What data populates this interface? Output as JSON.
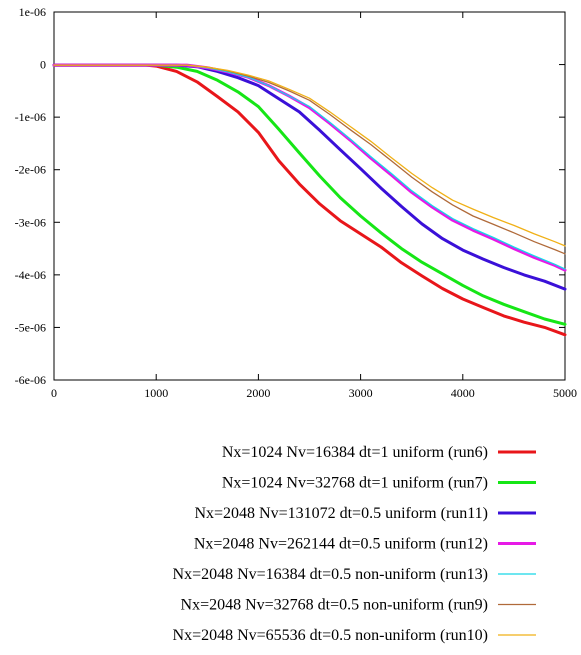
{
  "chart_data": {
    "type": "line",
    "title": "",
    "xlabel": "",
    "ylabel": "",
    "xlim": [
      0,
      5000
    ],
    "ylim": [
      -6e-06,
      1e-06
    ],
    "x_ticks": [
      0,
      1000,
      2000,
      3000,
      4000,
      5000
    ],
    "x_tick_labels": [
      "0",
      "1000",
      "2000",
      "3000",
      "4000",
      "5000"
    ],
    "y_ticks": [
      1e-06,
      0,
      -1e-06,
      -2e-06,
      -3e-06,
      -4e-06,
      -5e-06,
      -6e-06
    ],
    "y_tick_labels": [
      "1e-06",
      "0",
      "-1e-06",
      "-2e-06",
      "-3e-06",
      "-4e-06",
      "-5e-06",
      "-6e-06"
    ],
    "grid": false,
    "legend_position": "below",
    "series": [
      {
        "name": "Nx=1024 Nv=16384 dt=1 uniform (run6)",
        "color": "#e8161a",
        "width": 3,
        "x": [
          0,
          900,
          1000,
          1200,
          1400,
          1600,
          1800,
          2000,
          2200,
          2400,
          2600,
          2800,
          3000,
          3200,
          3400,
          3600,
          3800,
          4000,
          4200,
          4400,
          4600,
          4800,
          5000
        ],
        "y": [
          -1e-08,
          -1e-08,
          -3e-08,
          -1.3e-07,
          -3.3e-07,
          -6.1e-07,
          -9e-07,
          -1.29e-06,
          -1.83e-06,
          -2.27e-06,
          -2.65e-06,
          -2.97e-06,
          -3.22e-06,
          -3.47e-06,
          -3.77e-06,
          -4.02e-06,
          -4.26e-06,
          -4.46e-06,
          -4.62e-06,
          -4.78e-06,
          -4.9e-06,
          -5e-06,
          -5.14e-06
        ]
      },
      {
        "name": "Nx=1024 Nv=32768 dt=1 uniform (run7)",
        "color": "#16e616",
        "width": 3,
        "x": [
          0,
          1000,
          1200,
          1400,
          1600,
          1800,
          2000,
          2200,
          2400,
          2600,
          2800,
          3000,
          3200,
          3400,
          3600,
          3800,
          4000,
          4200,
          4400,
          4600,
          4800,
          5000
        ],
        "y": [
          -1e-08,
          -1e-08,
          -5e-08,
          -1.3e-07,
          -3e-07,
          -5.2e-07,
          -8e-07,
          -1.23e-06,
          -1.68e-06,
          -2.12e-06,
          -2.53e-06,
          -2.88e-06,
          -3.2e-06,
          -3.5e-06,
          -3.76e-06,
          -3.98e-06,
          -4.2e-06,
          -4.4e-06,
          -4.56e-06,
          -4.7e-06,
          -4.84e-06,
          -4.94e-06
        ]
      },
      {
        "name": "Nx=2048 Nv=131072 dt=0.5 uniform (run11)",
        "color": "#3a10d8",
        "width": 3,
        "x": [
          0,
          1200,
          1400,
          1600,
          1800,
          2000,
          2200,
          2400,
          2600,
          2800,
          3000,
          3200,
          3400,
          3600,
          3800,
          4000,
          4200,
          4400,
          4600,
          4800,
          5000
        ],
        "y": [
          -1e-08,
          -1e-08,
          -4e-08,
          -1.3e-07,
          -2.5e-07,
          -4e-07,
          -6.5e-07,
          -9e-07,
          -1.25e-06,
          -1.62e-06,
          -1.98e-06,
          -2.35e-06,
          -2.7e-06,
          -3.03e-06,
          -3.31e-06,
          -3.53e-06,
          -3.7e-06,
          -3.86e-06,
          -4e-06,
          -4.12e-06,
          -4.27e-06
        ]
      },
      {
        "name": "Nx=2048 Nv=262144 dt=0.5 uniform (run12)",
        "color": "#e61ae6",
        "width": 3,
        "x": [
          0,
          1300,
          1500,
          1700,
          1900,
          2100,
          2300,
          2500,
          2700,
          2900,
          3100,
          3300,
          3500,
          3700,
          3900,
          4100,
          4300,
          4500,
          4700,
          4900,
          5000
        ],
        "y": [
          -1e-08,
          -1e-08,
          -6e-08,
          -1.4e-07,
          -2.4e-07,
          -4e-07,
          -6e-07,
          -8.2e-07,
          -1.12e-06,
          -1.44e-06,
          -1.78e-06,
          -2.1e-06,
          -2.43e-06,
          -2.71e-06,
          -2.96e-06,
          -3.15e-06,
          -3.32e-06,
          -3.5e-06,
          -3.67e-06,
          -3.82e-06,
          -3.91e-06
        ]
      },
      {
        "name": "Nx=2048 Nv=16384 dt=0.5 non-uniform (run13)",
        "color": "#16d8e8",
        "width": 1.3,
        "x": [
          0,
          1300,
          1500,
          1700,
          1900,
          2100,
          2300,
          2500,
          2700,
          2900,
          3100,
          3300,
          3500,
          3700,
          3900,
          4100,
          4300,
          4500,
          4700,
          4900,
          5000
        ],
        "y": [
          -1e-08,
          -1e-08,
          -6e-08,
          -1.4e-07,
          -2.4e-07,
          -4e-07,
          -6e-07,
          -8e-07,
          -1.1e-06,
          -1.42e-06,
          -1.75e-06,
          -2.07e-06,
          -2.4e-06,
          -2.68e-06,
          -2.93e-06,
          -3.12e-06,
          -3.29e-06,
          -3.47e-06,
          -3.64e-06,
          -3.8e-06,
          -3.89e-06
        ]
      },
      {
        "name": "Nx=2048 Nv=32768 dt=0.5 non-uniform (run9)",
        "color": "#b06a3a",
        "width": 1.3,
        "x": [
          0,
          1300,
          1500,
          1700,
          1900,
          2100,
          2300,
          2500,
          2700,
          2900,
          3100,
          3300,
          3500,
          3700,
          3900,
          4100,
          4300,
          4500,
          4700,
          4900,
          5000
        ],
        "y": [
          -1e-08,
          -1e-08,
          -5e-08,
          -1.2e-07,
          -2.2e-07,
          -3.4e-07,
          -5e-07,
          -6.8e-07,
          -9.5e-07,
          -1.24e-06,
          -1.52e-06,
          -1.83e-06,
          -2.14e-06,
          -2.42e-06,
          -2.67e-06,
          -2.88e-06,
          -3.04e-06,
          -3.2e-06,
          -3.37e-06,
          -3.52e-06,
          -3.6e-06
        ]
      },
      {
        "name": "Nx=2048 Nv=65536 dt=0.5 non-uniform (run10)",
        "color": "#f0b016",
        "width": 1.3,
        "x": [
          0,
          1300,
          1500,
          1700,
          1900,
          2100,
          2300,
          2500,
          2700,
          2900,
          3100,
          3300,
          3500,
          3700,
          3900,
          4100,
          4300,
          4500,
          4700,
          4900,
          5000
        ],
        "y": [
          -1e-08,
          -1e-08,
          -5e-08,
          -1.1e-07,
          -2e-07,
          -3.1e-07,
          -4.7e-07,
          -6.4e-07,
          -9e-07,
          -1.18e-06,
          -1.46e-06,
          -1.77e-06,
          -2.07e-06,
          -2.34e-06,
          -2.58e-06,
          -2.75e-06,
          -2.91e-06,
          -3.06e-06,
          -3.22e-06,
          -3.37e-06,
          -3.45e-06
        ]
      }
    ]
  }
}
